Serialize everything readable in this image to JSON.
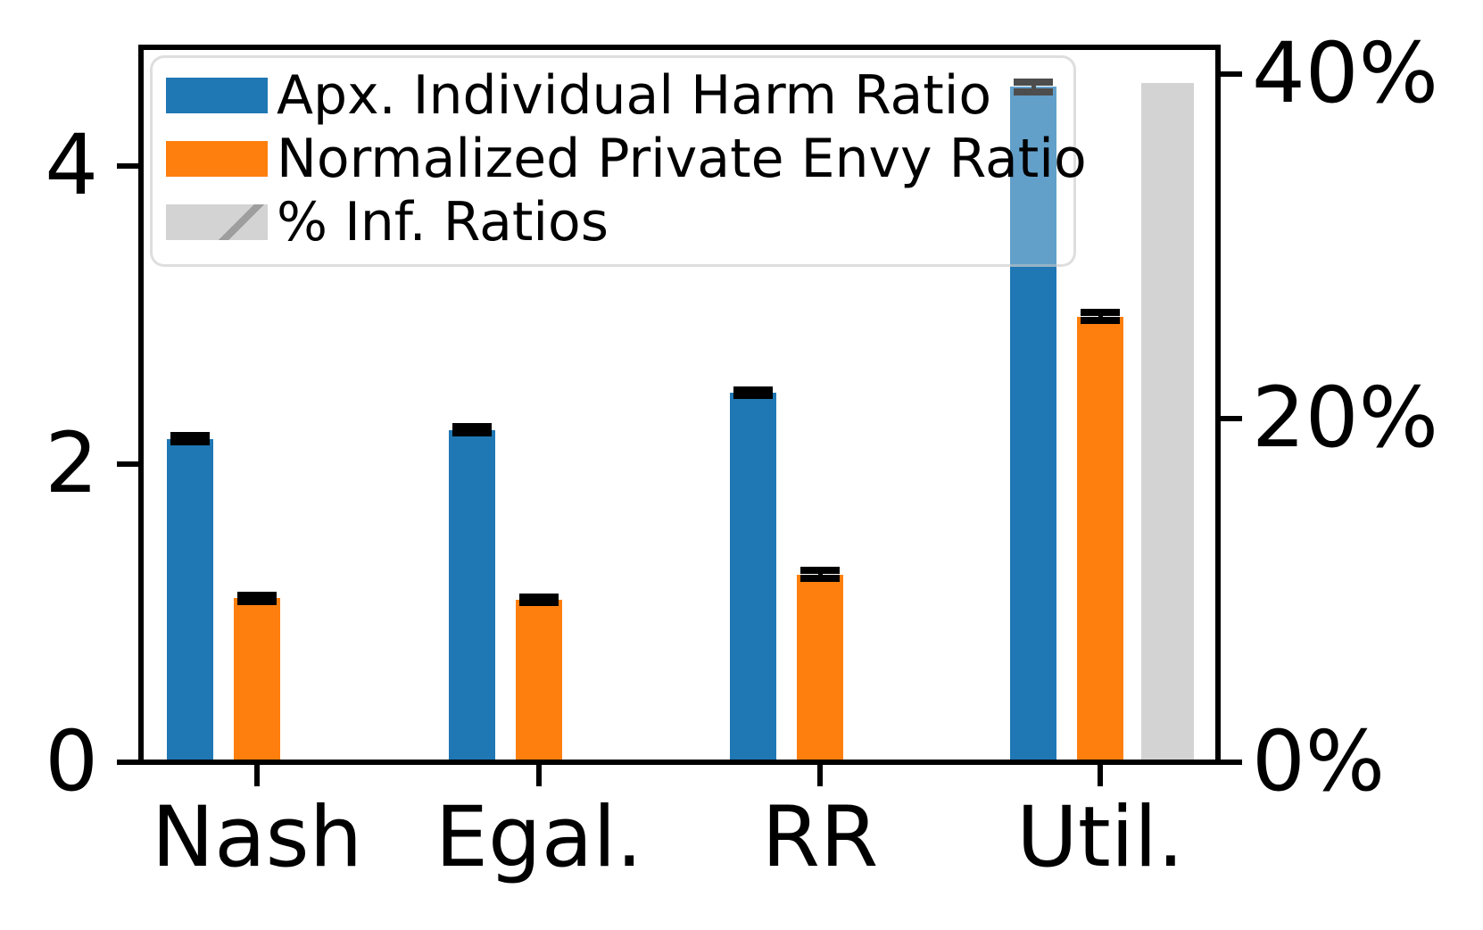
{
  "chart_data": {
    "type": "bar",
    "title": "",
    "categories": [
      "Nash",
      "Egal.",
      "RR",
      "Util."
    ],
    "series": [
      {
        "name": "Apx. Individual Harm Ratio",
        "axis": "left",
        "color": "#1f77b4",
        "values": [
          2.17,
          2.23,
          2.48,
          4.53
        ],
        "errors": [
          0.02,
          0.02,
          0.02,
          0.035
        ]
      },
      {
        "name": "Normalized Private Envy Ratio",
        "axis": "left",
        "color": "#ff7f0e",
        "values": [
          1.1,
          1.09,
          1.26,
          2.99
        ],
        "errors": [
          0.02,
          0.02,
          0.025,
          0.025
        ]
      },
      {
        "name": "% Inf. Ratios",
        "axis": "right",
        "color": "#d3d3d3",
        "hatch": "/",
        "hatch_color": "#a2a2a2",
        "values": [
          null,
          null,
          null,
          39.5
        ],
        "errors": [
          null,
          null,
          null,
          null
        ]
      }
    ],
    "left_axis": {
      "tick_values": [
        0,
        2,
        4
      ],
      "tick_labels": [
        "0",
        "2",
        "4"
      ],
      "range": [
        0,
        4.8
      ]
    },
    "right_axis": {
      "tick_values": [
        0,
        20,
        40
      ],
      "tick_labels": [
        "0%",
        "20%",
        "40%"
      ],
      "range": [
        0,
        41.6
      ]
    },
    "legend": {
      "position": "upper left",
      "entries": [
        "Apx. Individual Harm Ratio",
        "Normalized Private Envy Ratio",
        "% Inf. Ratios"
      ]
    },
    "error_bar_color": "#000000",
    "grid": false
  }
}
